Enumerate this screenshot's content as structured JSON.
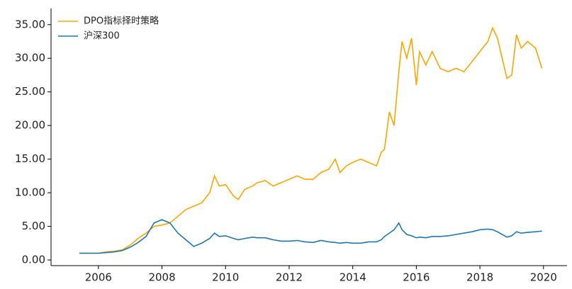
{
  "chart_data": {
    "type": "line",
    "x": [
      2005.4,
      2005.75,
      2006.0,
      2006.25,
      2006.5,
      2006.75,
      2007.0,
      2007.25,
      2007.5,
      2007.75,
      2008.0,
      2008.25,
      2008.5,
      2008.75,
      2009.0,
      2009.25,
      2009.5,
      2009.65,
      2009.8,
      2010.0,
      2010.25,
      2010.4,
      2010.6,
      2010.85,
      2011.0,
      2011.25,
      2011.5,
      2011.75,
      2012.0,
      2012.25,
      2012.5,
      2012.75,
      2013.0,
      2013.25,
      2013.45,
      2013.6,
      2013.8,
      2014.0,
      2014.25,
      2014.5,
      2014.75,
      2014.9,
      2015.0,
      2015.15,
      2015.3,
      2015.45,
      2015.55,
      2015.7,
      2015.85,
      2016.0,
      2016.1,
      2016.3,
      2016.5,
      2016.75,
      2017.0,
      2017.25,
      2017.5,
      2017.75,
      2018.0,
      2018.25,
      2018.4,
      2018.55,
      2018.7,
      2018.85,
      2019.0,
      2019.15,
      2019.3,
      2019.5,
      2019.75,
      2019.95
    ],
    "series": [
      {
        "name": "DPO指标择时策略",
        "color": "#ffa500",
        "values": [
          1.0,
          1.0,
          1.0,
          1.2,
          1.3,
          1.5,
          2.2,
          3.2,
          4.0,
          5.0,
          5.2,
          5.5,
          6.5,
          7.5,
          8.0,
          8.5,
          10.0,
          12.5,
          11.0,
          11.2,
          9.5,
          9.0,
          10.5,
          11.0,
          11.5,
          11.8,
          11.0,
          11.5,
          12.0,
          12.5,
          12.0,
          12.0,
          13.0,
          13.5,
          15.0,
          13.0,
          14.0,
          14.5,
          15.0,
          14.5,
          14.0,
          16.0,
          16.5,
          22.0,
          20.0,
          28.0,
          32.5,
          30.0,
          33.0,
          26.0,
          31.0,
          29.0,
          31.0,
          28.5,
          28.0,
          28.5,
          28.0,
          29.5,
          31.0,
          32.5,
          34.5,
          33.0,
          30.0,
          27.0,
          27.5,
          33.5,
          31.5,
          32.5,
          31.5,
          28.5
        ]
      },
      {
        "name": "沪深300",
        "color": "#1f77b4",
        "values": [
          1.0,
          1.0,
          1.0,
          1.1,
          1.2,
          1.4,
          1.9,
          2.6,
          3.5,
          5.5,
          6.0,
          5.5,
          4.0,
          3.0,
          2.0,
          2.5,
          3.2,
          4.0,
          3.5,
          3.6,
          3.2,
          3.0,
          3.2,
          3.4,
          3.3,
          3.3,
          3.0,
          2.8,
          2.8,
          2.9,
          2.7,
          2.6,
          2.9,
          2.7,
          2.6,
          2.5,
          2.6,
          2.5,
          2.5,
          2.7,
          2.7,
          3.0,
          3.5,
          4.0,
          4.5,
          5.5,
          4.5,
          3.8,
          3.6,
          3.3,
          3.4,
          3.3,
          3.5,
          3.5,
          3.6,
          3.8,
          4.0,
          4.2,
          4.5,
          4.6,
          4.5,
          4.2,
          3.8,
          3.4,
          3.6,
          4.2,
          4.0,
          4.1,
          4.2,
          4.3
        ]
      }
    ],
    "xlim": [
      2004.51,
      2020.74
    ],
    "xticks": [
      2006,
      2008,
      2010,
      2012,
      2014,
      2016,
      2018,
      2020
    ],
    "ylim": [
      -0.84,
      37.4
    ],
    "yticks": [
      {
        "value": 0,
        "label": "0.00"
      },
      {
        "value": 5,
        "label": "5.00"
      },
      {
        "value": 10,
        "label": "10.00"
      },
      {
        "value": 15,
        "label": "15.00"
      },
      {
        "value": 20,
        "label": "20.00"
      },
      {
        "value": 25,
        "label": "25.00"
      },
      {
        "value": 30,
        "label": "30.00"
      },
      {
        "value": 35,
        "label": "35.00"
      }
    ],
    "legend": "upper-left",
    "grid": false
  }
}
